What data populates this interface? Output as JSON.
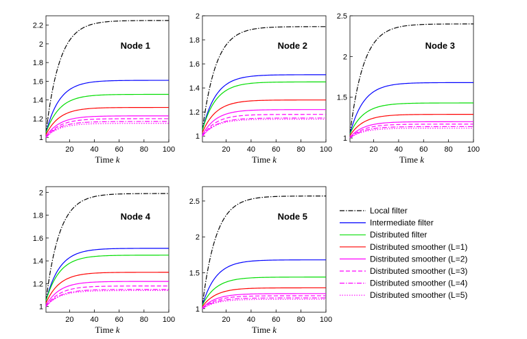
{
  "chart_data": {
    "type": "line",
    "x_label": "Time",
    "x_label_var": "k",
    "xlim": [
      1,
      100
    ],
    "x_ticks": [
      20,
      40,
      60,
      80,
      100
    ],
    "legend": {
      "placement": "bottom-right",
      "entries": [
        {
          "label": "Local filter",
          "color": "#000000",
          "dash": "dashdot"
        },
        {
          "label": "Intermediate filter",
          "color": "#0000ff",
          "dash": "solid"
        },
        {
          "label": "Distributed filter",
          "color": "#00dd00",
          "dash": "solid"
        },
        {
          "label": "Distributed smoother (L=1)",
          "color": "#ff0000",
          "dash": "solid"
        },
        {
          "label": "Distributed smoother (L=2)",
          "color": "#ff00ff",
          "dash": "solid"
        },
        {
          "label": "Distributed smoother (L=3)",
          "color": "#ff00ff",
          "dash": "dashed"
        },
        {
          "label": "Distributed smoother (L=4)",
          "color": "#ff00ff",
          "dash": "dashdot"
        },
        {
          "label": "Distributed smoother (L=5)",
          "color": "#ff00ff",
          "dash": "dotted"
        }
      ]
    },
    "panels": [
      {
        "title": "Node 1",
        "ylim": [
          0.95,
          2.3
        ],
        "y_ticks": [
          1,
          1.2,
          1.4,
          1.6,
          1.8,
          2,
          2.2
        ],
        "y_tick_labels": [
          "1",
          "1.2",
          "1.4",
          "1.6",
          "1.8",
          "2",
          "2.2"
        ],
        "series": [
          {
            "name": "Local filter",
            "start": 1.05,
            "steady": 2.25
          },
          {
            "name": "Intermediate filter",
            "start": 1.05,
            "steady": 1.61
          },
          {
            "name": "Distributed filter",
            "start": 1.05,
            "steady": 1.46
          },
          {
            "name": "Distributed smoother (L=1)",
            "start": 1.03,
            "steady": 1.32
          },
          {
            "name": "Distributed smoother (L=2)",
            "start": 1.01,
            "steady": 1.23
          },
          {
            "name": "Distributed smoother (L=3)",
            "start": 1.0,
            "steady": 1.2
          },
          {
            "name": "Distributed smoother (L=4)",
            "start": 1.0,
            "steady": 1.17
          },
          {
            "name": "Distributed smoother (L=5)",
            "start": 1.0,
            "steady": 1.15
          }
        ]
      },
      {
        "title": "Node 2",
        "ylim": [
          0.95,
          2.0
        ],
        "y_ticks": [
          1,
          1.2,
          1.4,
          1.6,
          1.8,
          2
        ],
        "y_tick_labels": [
          "1",
          "1.2",
          "1.4",
          "1.6",
          "1.8",
          "2"
        ],
        "series": [
          {
            "name": "Local filter",
            "start": 1.05,
            "steady": 1.91
          },
          {
            "name": "Intermediate filter",
            "start": 1.05,
            "steady": 1.51
          },
          {
            "name": "Distributed filter",
            "start": 1.05,
            "steady": 1.45
          },
          {
            "name": "Distributed smoother (L=1)",
            "start": 1.03,
            "steady": 1.3
          },
          {
            "name": "Distributed smoother (L=2)",
            "start": 1.01,
            "steady": 1.22
          },
          {
            "name": "Distributed smoother (L=3)",
            "start": 1.0,
            "steady": 1.18
          },
          {
            "name": "Distributed smoother (L=4)",
            "start": 1.0,
            "steady": 1.15
          },
          {
            "name": "Distributed smoother (L=5)",
            "start": 1.0,
            "steady": 1.14
          }
        ]
      },
      {
        "title": "Node 3",
        "ylim": [
          0.95,
          2.5
        ],
        "y_ticks": [
          1,
          1.5,
          2,
          2.5
        ],
        "y_tick_labels": [
          "1",
          "1.5",
          "2",
          "2.5"
        ],
        "series": [
          {
            "name": "Local filter",
            "start": 1.05,
            "steady": 2.4
          },
          {
            "name": "Intermediate filter",
            "start": 1.05,
            "steady": 1.68
          },
          {
            "name": "Distributed filter",
            "start": 1.05,
            "steady": 1.43
          },
          {
            "name": "Distributed smoother (L=1)",
            "start": 1.03,
            "steady": 1.29
          },
          {
            "name": "Distributed smoother (L=2)",
            "start": 1.01,
            "steady": 1.2
          },
          {
            "name": "Distributed smoother (L=3)",
            "start": 1.0,
            "steady": 1.17
          },
          {
            "name": "Distributed smoother (L=4)",
            "start": 1.0,
            "steady": 1.14
          },
          {
            "name": "Distributed smoother (L=5)",
            "start": 1.0,
            "steady": 1.12
          }
        ]
      },
      {
        "title": "Node 4",
        "ylim": [
          0.95,
          2.05
        ],
        "y_ticks": [
          1,
          1.2,
          1.4,
          1.6,
          1.8,
          2
        ],
        "y_tick_labels": [
          "1",
          "1.2",
          "1.4",
          "1.6",
          "1.8",
          "2"
        ],
        "series": [
          {
            "name": "Local filter",
            "start": 1.05,
            "steady": 1.99
          },
          {
            "name": "Intermediate filter",
            "start": 1.05,
            "steady": 1.51
          },
          {
            "name": "Distributed filter",
            "start": 1.05,
            "steady": 1.45
          },
          {
            "name": "Distributed smoother (L=1)",
            "start": 1.03,
            "steady": 1.3
          },
          {
            "name": "Distributed smoother (L=2)",
            "start": 1.01,
            "steady": 1.22
          },
          {
            "name": "Distributed smoother (L=3)",
            "start": 1.0,
            "steady": 1.18
          },
          {
            "name": "Distributed smoother (L=4)",
            "start": 1.0,
            "steady": 1.15
          },
          {
            "name": "Distributed smoother (L=5)",
            "start": 1.0,
            "steady": 1.14
          }
        ]
      },
      {
        "title": "Node 5",
        "ylim": [
          0.95,
          2.7
        ],
        "y_ticks": [
          1,
          1.5,
          2,
          2.5
        ],
        "y_tick_labels": [
          "1",
          "1.5",
          "2",
          "2.5"
        ],
        "series": [
          {
            "name": "Local filter",
            "start": 1.05,
            "steady": 2.57
          },
          {
            "name": "Intermediate filter",
            "start": 1.05,
            "steady": 1.68
          },
          {
            "name": "Distributed filter",
            "start": 1.05,
            "steady": 1.44
          },
          {
            "name": "Distributed smoother (L=1)",
            "start": 1.03,
            "steady": 1.29
          },
          {
            "name": "Distributed smoother (L=2)",
            "start": 1.01,
            "steady": 1.21
          },
          {
            "name": "Distributed smoother (L=3)",
            "start": 1.0,
            "steady": 1.18
          },
          {
            "name": "Distributed smoother (L=4)",
            "start": 1.0,
            "steady": 1.15
          },
          {
            "name": "Distributed smoother (L=5)",
            "start": 1.0,
            "steady": 1.13
          }
        ]
      }
    ]
  }
}
